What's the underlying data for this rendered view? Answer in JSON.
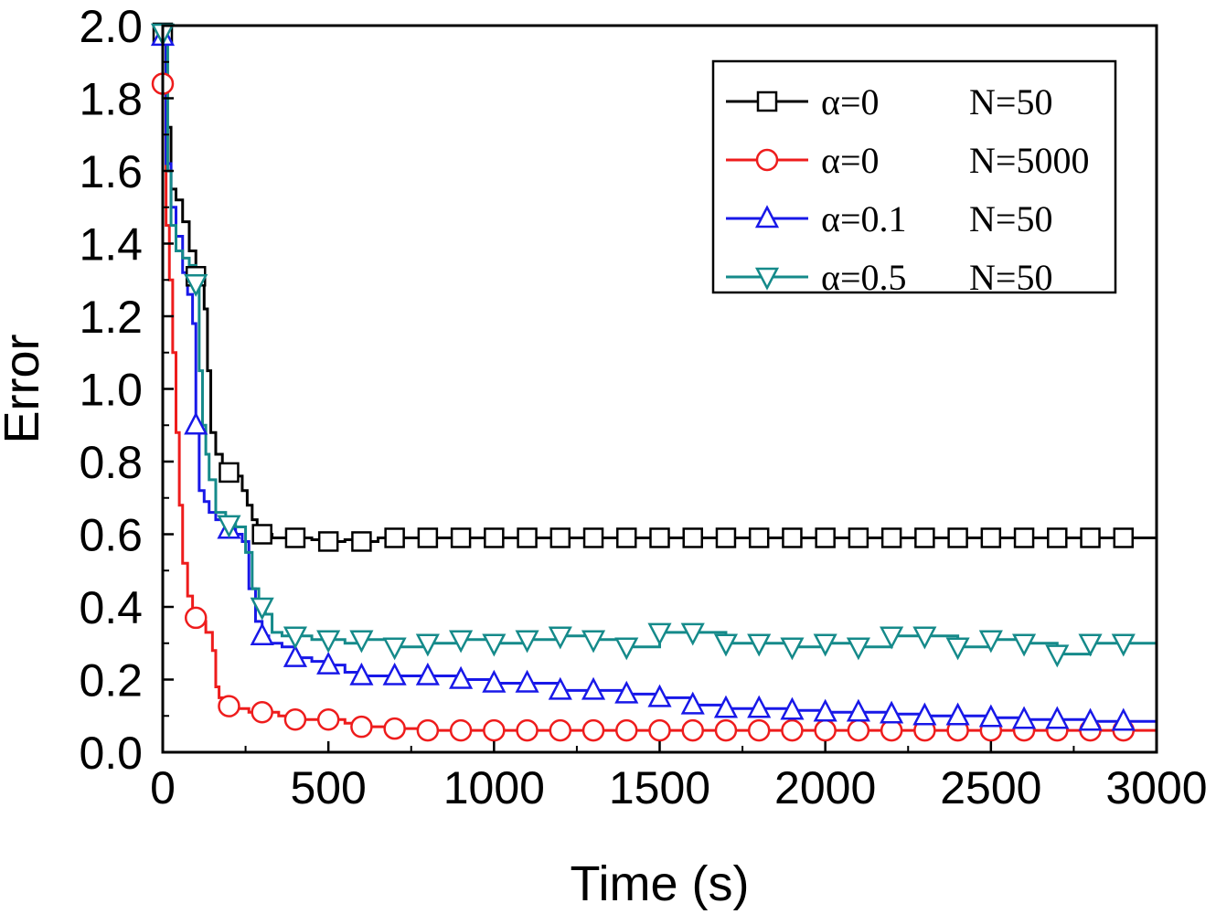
{
  "chart_data": {
    "type": "line",
    "title": "",
    "xlabel": "Time (s)",
    "ylabel": "Error",
    "xlim": [
      0,
      3000
    ],
    "ylim": [
      0.0,
      2.0
    ],
    "xticks": [
      0,
      500,
      1000,
      1500,
      2000,
      2500,
      3000
    ],
    "xtick_labels": [
      "0",
      "500",
      "1000",
      "1500",
      "2000",
      "2500",
      "3000"
    ],
    "yticks": [
      0.0,
      0.2,
      0.4,
      0.6,
      0.8,
      1.0,
      1.2,
      1.4,
      1.6,
      1.8,
      2.0
    ],
    "ytick_labels": [
      "0.0",
      "0.2",
      "0.4",
      "0.6",
      "0.8",
      "1.0",
      "1.2",
      "1.4",
      "1.6",
      "1.8",
      "2.0"
    ],
    "grid": false,
    "legend_position": "top-right",
    "series": [
      {
        "name": "α=0",
        "param": "N=50",
        "color": "#000000",
        "marker": "square",
        "points": [
          [
            0,
            1.98
          ],
          [
            10,
            1.72
          ],
          [
            25,
            1.55
          ],
          [
            40,
            1.52
          ],
          [
            60,
            1.46
          ],
          [
            80,
            1.38
          ],
          [
            100,
            1.31
          ],
          [
            115,
            1.3
          ],
          [
            125,
            1.22
          ],
          [
            135,
            1.05
          ],
          [
            145,
            0.88
          ],
          [
            160,
            0.82
          ],
          [
            180,
            0.79
          ],
          [
            200,
            0.77
          ],
          [
            220,
            0.76
          ],
          [
            240,
            0.72
          ],
          [
            255,
            0.68
          ],
          [
            270,
            0.64
          ],
          [
            285,
            0.62
          ],
          [
            300,
            0.6
          ],
          [
            330,
            0.59
          ],
          [
            400,
            0.59
          ],
          [
            450,
            0.585
          ],
          [
            500,
            0.58
          ],
          [
            550,
            0.585
          ],
          [
            600,
            0.58
          ],
          [
            650,
            0.59
          ],
          [
            700,
            0.59
          ],
          [
            1000,
            0.59
          ],
          [
            1500,
            0.59
          ],
          [
            2000,
            0.59
          ],
          [
            2500,
            0.59
          ],
          [
            3000,
            0.59
          ]
        ]
      },
      {
        "name": "α=0",
        "param": "N=5000",
        "color": "#ee1c1c",
        "marker": "circle",
        "points": [
          [
            0,
            1.84
          ],
          [
            10,
            1.45
          ],
          [
            20,
            1.3
          ],
          [
            30,
            1.1
          ],
          [
            40,
            0.88
          ],
          [
            50,
            0.68
          ],
          [
            60,
            0.52
          ],
          [
            75,
            0.43
          ],
          [
            90,
            0.39
          ],
          [
            100,
            0.37
          ],
          [
            110,
            0.36
          ],
          [
            130,
            0.33
          ],
          [
            150,
            0.28
          ],
          [
            160,
            0.18
          ],
          [
            170,
            0.15
          ],
          [
            190,
            0.13
          ],
          [
            220,
            0.12
          ],
          [
            260,
            0.11
          ],
          [
            300,
            0.11
          ],
          [
            350,
            0.1
          ],
          [
            400,
            0.09
          ],
          [
            500,
            0.09
          ],
          [
            550,
            0.08
          ],
          [
            600,
            0.07
          ],
          [
            700,
            0.065
          ],
          [
            800,
            0.06
          ],
          [
            1000,
            0.06
          ],
          [
            1500,
            0.06
          ],
          [
            2000,
            0.06
          ],
          [
            2500,
            0.06
          ],
          [
            3000,
            0.06
          ]
        ]
      },
      {
        "name": "α=0.1",
        "param": "N=50",
        "color": "#1818e8",
        "marker": "triangle-up",
        "points": [
          [
            0,
            1.97
          ],
          [
            10,
            1.62
          ],
          [
            25,
            1.5
          ],
          [
            40,
            1.42
          ],
          [
            60,
            1.32
          ],
          [
            75,
            1.26
          ],
          [
            90,
            1.18
          ],
          [
            100,
            0.9
          ],
          [
            110,
            0.72
          ],
          [
            125,
            0.69
          ],
          [
            140,
            0.66
          ],
          [
            160,
            0.64
          ],
          [
            190,
            0.62
          ],
          [
            220,
            0.6
          ],
          [
            240,
            0.58
          ],
          [
            260,
            0.45
          ],
          [
            280,
            0.36
          ],
          [
            300,
            0.32
          ],
          [
            320,
            0.3
          ],
          [
            360,
            0.29
          ],
          [
            400,
            0.26
          ],
          [
            450,
            0.25
          ],
          [
            500,
            0.24
          ],
          [
            550,
            0.22
          ],
          [
            600,
            0.21
          ],
          [
            700,
            0.21
          ],
          [
            800,
            0.21
          ],
          [
            900,
            0.2
          ],
          [
            1000,
            0.19
          ],
          [
            1100,
            0.19
          ],
          [
            1200,
            0.17
          ],
          [
            1300,
            0.17
          ],
          [
            1400,
            0.16
          ],
          [
            1500,
            0.15
          ],
          [
            1600,
            0.13
          ],
          [
            1700,
            0.12
          ],
          [
            1800,
            0.12
          ],
          [
            1900,
            0.115
          ],
          [
            2000,
            0.11
          ],
          [
            2100,
            0.11
          ],
          [
            2200,
            0.105
          ],
          [
            2300,
            0.1
          ],
          [
            2400,
            0.1
          ],
          [
            2500,
            0.095
          ],
          [
            2600,
            0.09
          ],
          [
            2700,
            0.09
          ],
          [
            2800,
            0.085
          ],
          [
            2900,
            0.085
          ],
          [
            3000,
            0.085
          ]
        ]
      },
      {
        "name": "α=0.5",
        "param": "N=50",
        "color": "#158a8a",
        "marker": "triangle-down",
        "points": [
          [
            0,
            1.98
          ],
          [
            15,
            1.6
          ],
          [
            25,
            1.45
          ],
          [
            40,
            1.38
          ],
          [
            60,
            1.36
          ],
          [
            80,
            1.34
          ],
          [
            100,
            1.29
          ],
          [
            110,
            1.05
          ],
          [
            120,
            0.9
          ],
          [
            130,
            0.82
          ],
          [
            140,
            0.75
          ],
          [
            160,
            0.66
          ],
          [
            190,
            0.63
          ],
          [
            220,
            0.62
          ],
          [
            250,
            0.55
          ],
          [
            270,
            0.45
          ],
          [
            290,
            0.42
          ],
          [
            310,
            0.38
          ],
          [
            330,
            0.33
          ],
          [
            360,
            0.32
          ],
          [
            400,
            0.32
          ],
          [
            450,
            0.31
          ],
          [
            500,
            0.31
          ],
          [
            550,
            0.3
          ],
          [
            600,
            0.31
          ],
          [
            700,
            0.29
          ],
          [
            800,
            0.3
          ],
          [
            900,
            0.31
          ],
          [
            1000,
            0.3
          ],
          [
            1100,
            0.31
          ],
          [
            1200,
            0.32
          ],
          [
            1300,
            0.31
          ],
          [
            1400,
            0.29
          ],
          [
            1500,
            0.33
          ],
          [
            1600,
            0.33
          ],
          [
            1700,
            0.3
          ],
          [
            1800,
            0.3
          ],
          [
            1900,
            0.29
          ],
          [
            2000,
            0.3
          ],
          [
            2100,
            0.29
          ],
          [
            2200,
            0.32
          ],
          [
            2300,
            0.32
          ],
          [
            2400,
            0.29
          ],
          [
            2500,
            0.31
          ],
          [
            2600,
            0.3
          ],
          [
            2700,
            0.27
          ],
          [
            2800,
            0.3
          ],
          [
            2900,
            0.3
          ],
          [
            3000,
            0.3
          ]
        ]
      }
    ]
  }
}
